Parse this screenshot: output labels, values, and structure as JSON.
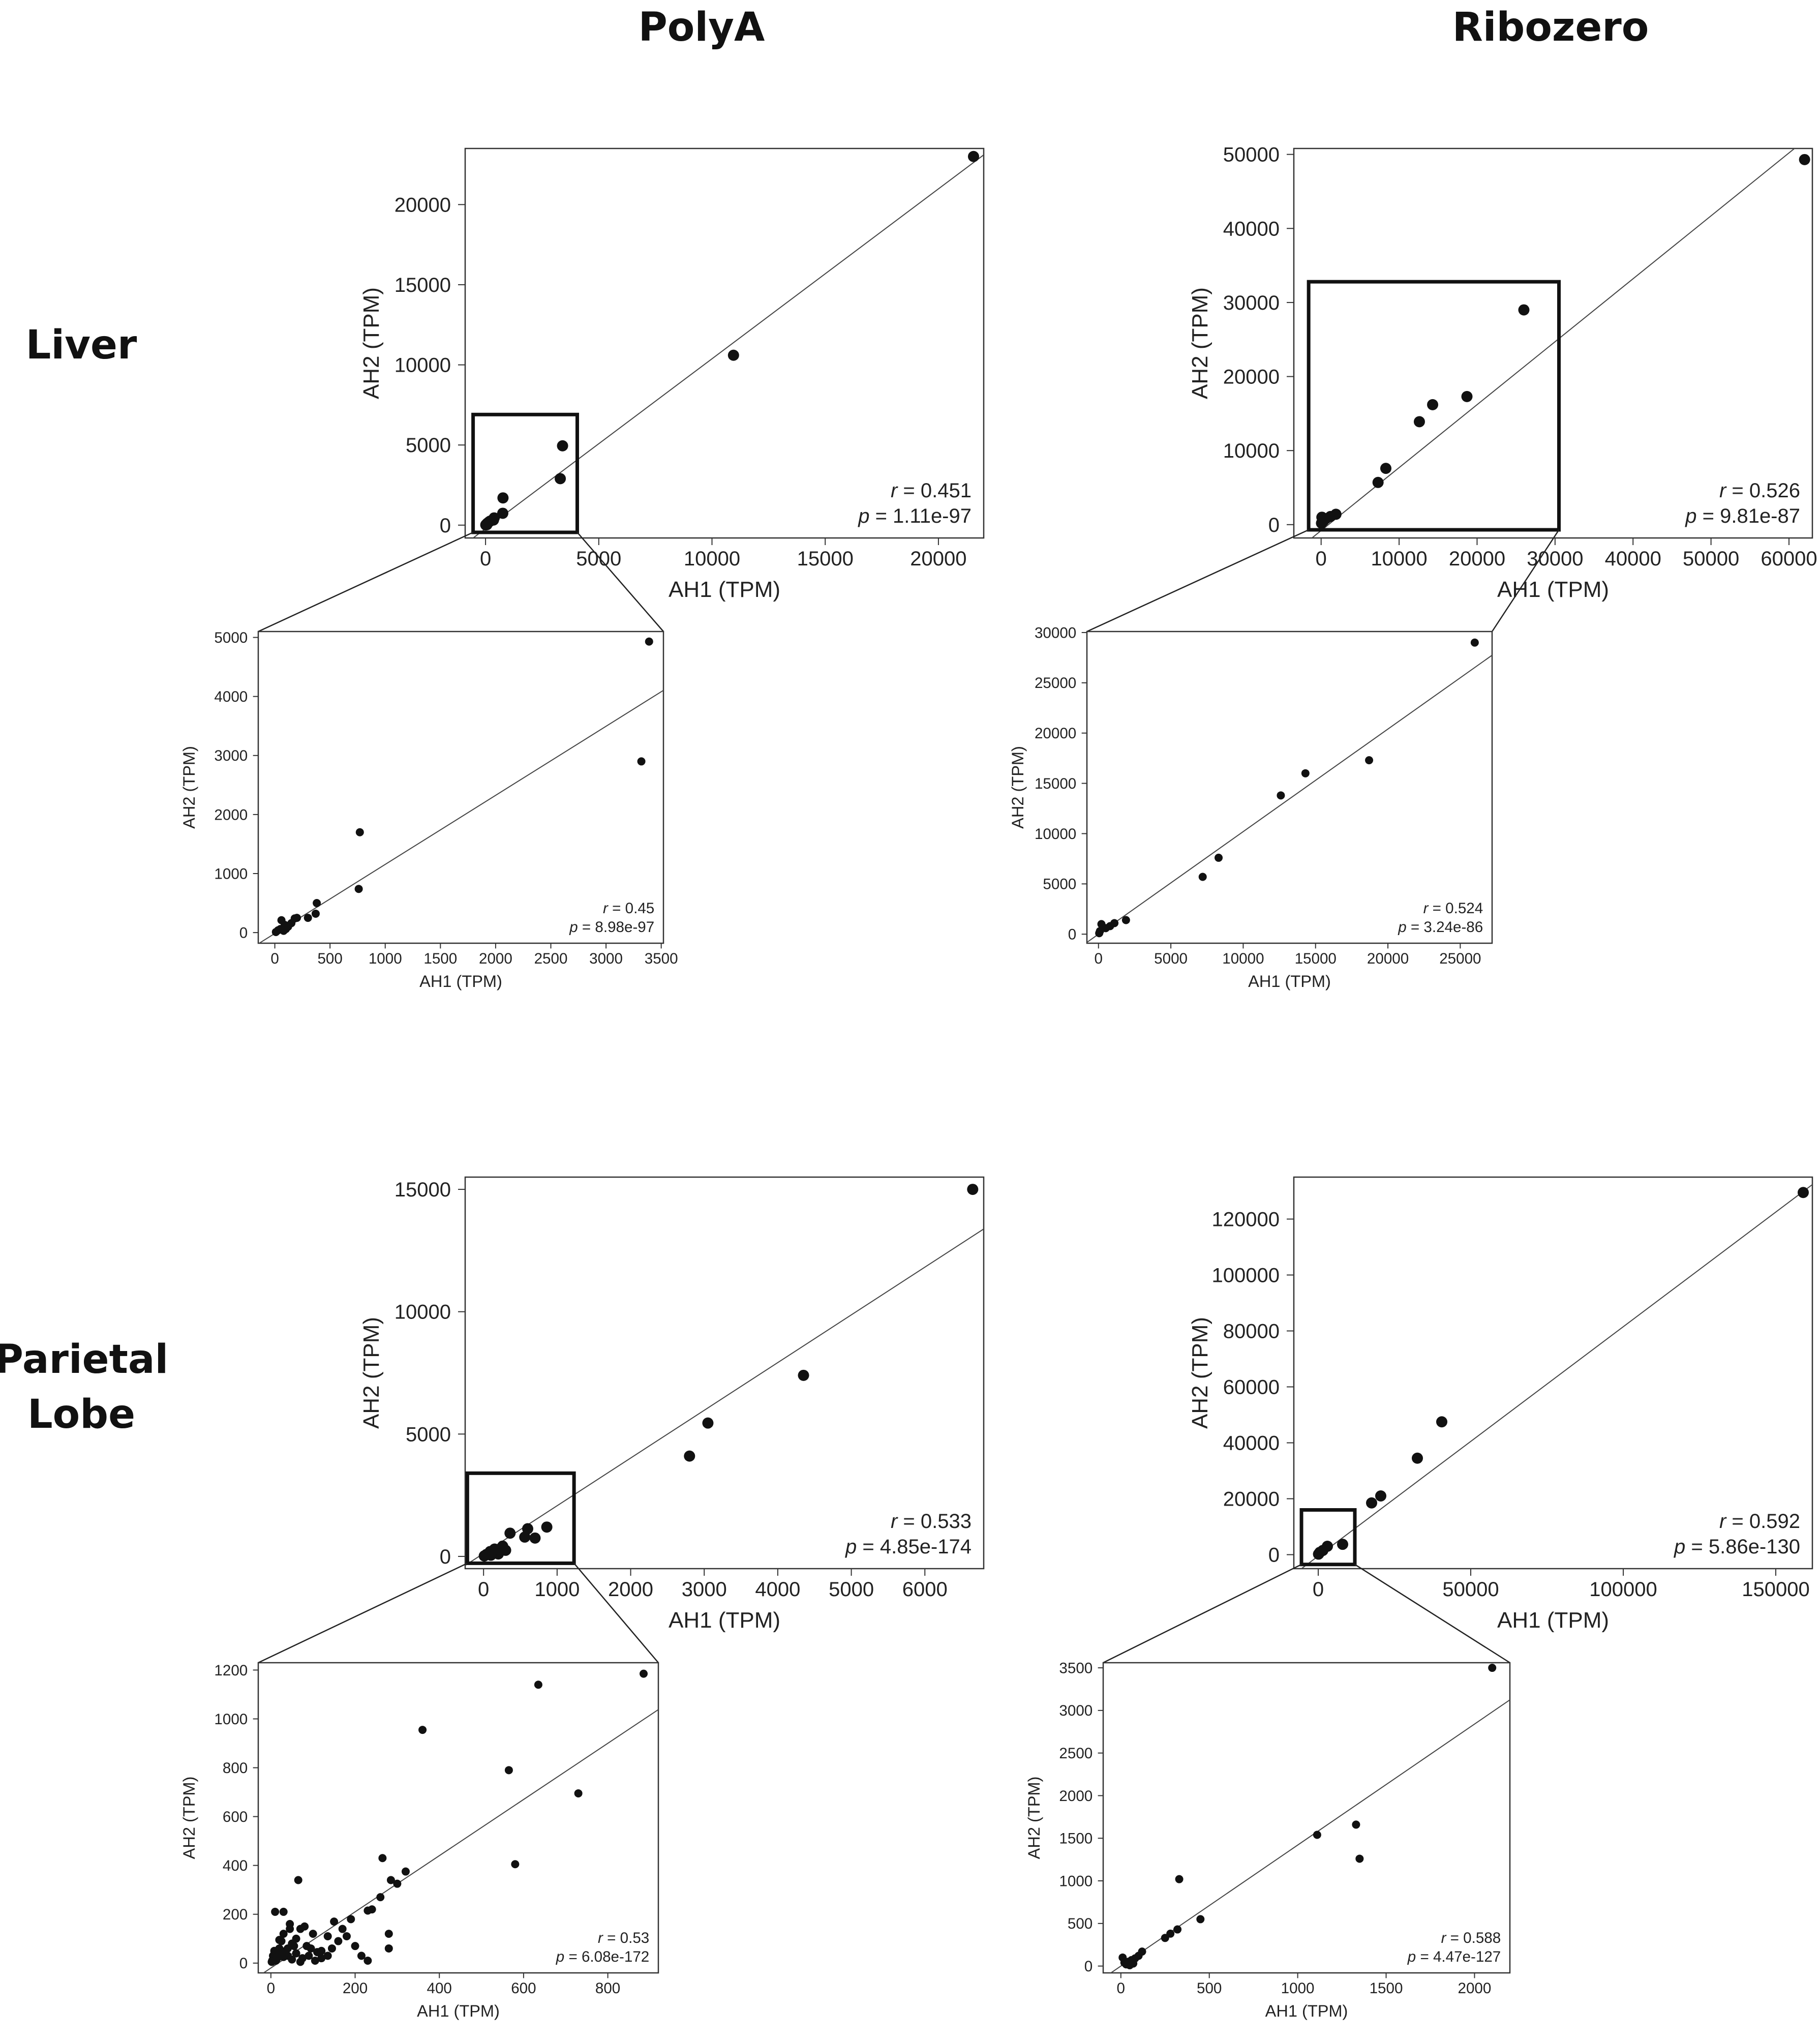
{
  "headers": {
    "columns": [
      "PolyA",
      "Ribozero"
    ],
    "rows": [
      [
        "Liver"
      ],
      [
        "Parietal",
        "Lobe"
      ]
    ]
  },
  "chart_data": [
    {
      "id": "liver-polya-main",
      "type": "scatter",
      "xlabel": "AH1 (TPM)",
      "ylabel": "AH2 (TPM)",
      "xlim": [
        -900,
        22000
      ],
      "ylim": [
        -800,
        23500
      ],
      "xticks": [
        0,
        5000,
        10000,
        15000,
        20000
      ],
      "yticks": [
        0,
        5000,
        10000,
        15000,
        20000
      ],
      "stats": {
        "r": "0.451",
        "p": "1.11e-97"
      },
      "fit_line": {
        "slope": 1.06,
        "intercept": -220
      },
      "zoom_box": {
        "x": [
          -550,
          4050
        ],
        "y": [
          -450,
          6900
        ]
      },
      "points": [
        [
          21550,
          23000
        ],
        [
          10950,
          10600
        ],
        [
          3400,
          4950
        ],
        [
          3300,
          2900
        ],
        [
          770,
          1700
        ],
        [
          760,
          740
        ],
        [
          380,
          450
        ],
        [
          350,
          320
        ],
        [
          200,
          250
        ],
        [
          150,
          200
        ],
        [
          80,
          120
        ],
        [
          40,
          60
        ],
        [
          10,
          15
        ],
        [
          60,
          30
        ]
      ]
    },
    {
      "id": "liver-polya-zoom",
      "type": "scatter",
      "xlabel": "AH1 (TPM)",
      "ylabel": "AH2 (TPM)",
      "xlim": [
        -150,
        3520
      ],
      "ylim": [
        -180,
        5100
      ],
      "xticks": [
        0,
        500,
        1000,
        1500,
        2000,
        2500,
        3000,
        3500
      ],
      "yticks": [
        0,
        1000,
        2000,
        3000,
        4000,
        5000
      ],
      "stats": {
        "r": "0.45",
        "p": "8.98e-97"
      },
      "fit_line": {
        "slope": 1.17,
        "intercept": -15
      },
      "points": [
        [
          3390,
          4930
        ],
        [
          3320,
          2900
        ],
        [
          770,
          1700
        ],
        [
          760,
          740
        ],
        [
          380,
          500
        ],
        [
          370,
          320
        ],
        [
          300,
          250
        ],
        [
          200,
          250
        ],
        [
          180,
          240
        ],
        [
          150,
          160
        ],
        [
          120,
          100
        ],
        [
          90,
          130
        ],
        [
          60,
          210
        ],
        [
          50,
          60
        ],
        [
          30,
          40
        ],
        [
          10,
          10
        ],
        [
          80,
          30
        ],
        [
          100,
          60
        ]
      ]
    },
    {
      "id": "liver-ribozero-main",
      "type": "scatter",
      "xlabel": "AH1 (TPM)",
      "ylabel": "AH2 (TPM)",
      "xlim": [
        -3500,
        63000
      ],
      "ylim": [
        -1800,
        50800
      ],
      "xticks": [
        0,
        10000,
        20000,
        30000,
        40000,
        50000,
        60000
      ],
      "yticks": [
        0,
        10000,
        20000,
        30000,
        40000,
        50000
      ],
      "stats": {
        "r": "0.526",
        "p": "9.81e-87"
      },
      "fit_line": {
        "slope": 0.85,
        "intercept": -800
      },
      "zoom_box": {
        "x": [
          -1600,
          30500
        ],
        "y": [
          -700,
          32800
        ]
      },
      "points": [
        [
          62000,
          49300
        ],
        [
          26000,
          29000
        ],
        [
          18700,
          17300
        ],
        [
          14300,
          16200
        ],
        [
          12600,
          13900
        ],
        [
          8300,
          7600
        ],
        [
          7300,
          5700
        ],
        [
          1900,
          1400
        ],
        [
          1200,
          1100
        ],
        [
          600,
          800
        ],
        [
          300,
          500
        ],
        [
          100,
          1000
        ],
        [
          50,
          200
        ]
      ]
    },
    {
      "id": "liver-ribozero-zoom",
      "type": "scatter",
      "xlabel": "AH1 (TPM)",
      "ylabel": "AH2 (TPM)",
      "xlim": [
        -800,
        27200
      ],
      "ylim": [
        -900,
        30100
      ],
      "xticks": [
        0,
        5000,
        10000,
        15000,
        20000,
        25000
      ],
      "yticks": [
        0,
        5000,
        10000,
        15000,
        20000,
        25000,
        30000
      ],
      "stats": {
        "r": "0.524",
        "p": "3.24e-86"
      },
      "fit_line": {
        "slope": 1.02,
        "intercept": 0
      },
      "points": [
        [
          26000,
          29000
        ],
        [
          18700,
          17300
        ],
        [
          14300,
          16000
        ],
        [
          12600,
          13800
        ],
        [
          8300,
          7600
        ],
        [
          7200,
          5700
        ],
        [
          1900,
          1400
        ],
        [
          1100,
          1100
        ],
        [
          800,
          800
        ],
        [
          500,
          600
        ],
        [
          200,
          1000
        ],
        [
          100,
          300
        ],
        [
          50,
          100
        ]
      ]
    },
    {
      "id": "parietal-polya-main",
      "type": "scatter",
      "xlabel": "AH1 (TPM)",
      "ylabel": "AH2 (TPM)",
      "xlim": [
        -250,
        6800
      ],
      "ylim": [
        -500,
        15500
      ],
      "xticks": [
        0,
        1000,
        2000,
        3000,
        4000,
        5000,
        6000
      ],
      "yticks": [
        0,
        5000,
        10000,
        15000
      ],
      "stats": {
        "r": "0.533",
        "p": "4.85e-174"
      },
      "fit_line": {
        "slope": 1.95,
        "intercept": 120
      },
      "zoom_box": {
        "x": [
          -220,
          1230
        ],
        "y": [
          -280,
          3400
        ]
      },
      "points": [
        [
          6650,
          15000
        ],
        [
          4350,
          7400
        ],
        [
          3050,
          5450
        ],
        [
          2800,
          4100
        ],
        [
          860,
          1200
        ],
        [
          700,
          750
        ],
        [
          600,
          1130
        ],
        [
          560,
          790
        ],
        [
          360,
          950
        ],
        [
          260,
          420
        ],
        [
          150,
          300
        ],
        [
          90,
          200
        ],
        [
          40,
          80
        ],
        [
          10,
          20
        ],
        [
          200,
          100
        ],
        [
          100,
          50
        ],
        [
          300,
          250
        ]
      ]
    },
    {
      "id": "parietal-polya-zoom",
      "type": "scatter",
      "xlabel": "AH1 (TPM)",
      "ylabel": "AH2 (TPM)",
      "xlim": [
        -30,
        920
      ],
      "ylim": [
        -40,
        1230
      ],
      "xticks": [
        0,
        200,
        400,
        600,
        800
      ],
      "yticks": [
        0,
        200,
        400,
        600,
        800,
        1000,
        1200
      ],
      "stats": {
        "r": "0.53",
        "p": "6.08e-172"
      },
      "fit_line": {
        "slope": 1.15,
        "intercept": -20
      },
      "points": [
        [
          885,
          1185
        ],
        [
          635,
          1140
        ],
        [
          360,
          955
        ],
        [
          565,
          790
        ],
        [
          730,
          695
        ],
        [
          580,
          405
        ],
        [
          320,
          375
        ],
        [
          300,
          325
        ],
        [
          285,
          340
        ],
        [
          265,
          430
        ],
        [
          260,
          270
        ],
        [
          240,
          220
        ],
        [
          230,
          215
        ],
        [
          280,
          120
        ],
        [
          280,
          60
        ],
        [
          230,
          10
        ],
        [
          215,
          30
        ],
        [
          190,
          180
        ],
        [
          170,
          140
        ],
        [
          150,
          170
        ],
        [
          135,
          110
        ],
        [
          120,
          20
        ],
        [
          110,
          45
        ],
        [
          100,
          120
        ],
        [
          95,
          60
        ],
        [
          85,
          70
        ],
        [
          80,
          150
        ],
        [
          70,
          140
        ],
        [
          65,
          340
        ],
        [
          60,
          100
        ],
        [
          55,
          70
        ],
        [
          50,
          80
        ],
        [
          45,
          140
        ],
        [
          40,
          60
        ],
        [
          35,
          50
        ],
        [
          30,
          210
        ],
        [
          30,
          120
        ],
        [
          25,
          90
        ],
        [
          20,
          60
        ],
        [
          18,
          40
        ],
        [
          15,
          20
        ],
        [
          12,
          10
        ],
        [
          10,
          210
        ],
        [
          8,
          50
        ],
        [
          5,
          30
        ],
        [
          3,
          10
        ],
        [
          2,
          5
        ],
        [
          40,
          30
        ],
        [
          60,
          40
        ],
        [
          75,
          20
        ],
        [
          90,
          30
        ],
        [
          105,
          10
        ],
        [
          120,
          50
        ],
        [
          135,
          30
        ],
        [
          145,
          60
        ],
        [
          160,
          90
        ],
        [
          180,
          110
        ],
        [
          200,
          70
        ],
        [
          70,
          5
        ],
        [
          50,
          15
        ],
        [
          30,
          25
        ],
        [
          20,
          95
        ],
        [
          45,
          160
        ]
      ]
    },
    {
      "id": "parietal-ribozero-main",
      "type": "scatter",
      "xlabel": "AH1 (TPM)",
      "ylabel": "AH2 (TPM)",
      "xlim": [
        -8000,
        162000
      ],
      "ylim": [
        -5000,
        135000
      ],
      "xticks": [
        0,
        50000,
        100000,
        150000
      ],
      "yticks": [
        0,
        20000,
        40000,
        60000,
        80000,
        100000,
        120000
      ],
      "stats": {
        "r": "0.592",
        "p": "5.86e-130"
      },
      "fit_line": {
        "slope": 0.82,
        "intercept": -500
      },
      "zoom_box": {
        "x": [
          -5500,
          12000
        ],
        "y": [
          -3500,
          16000
        ]
      },
      "points": [
        [
          159000,
          129500
        ],
        [
          40500,
          47500
        ],
        [
          32500,
          34500
        ],
        [
          20500,
          21000
        ],
        [
          17500,
          18500
        ],
        [
          8000,
          3700
        ],
        [
          3000,
          3000
        ],
        [
          1500,
          1500
        ],
        [
          500,
          800
        ],
        [
          100,
          200
        ]
      ]
    },
    {
      "id": "parietal-ribozero-zoom",
      "type": "scatter",
      "xlabel": "AH1 (TPM)",
      "ylabel": "AH2 (TPM)",
      "xlim": [
        -100,
        2200
      ],
      "ylim": [
        -80,
        3560
      ],
      "xticks": [
        0,
        500,
        1000,
        1500,
        2000
      ],
      "yticks": [
        0,
        500,
        1000,
        1500,
        2000,
        2500,
        3000,
        3500
      ],
      "stats": {
        "r": "0.588",
        "p": "4.47e-127"
      },
      "fit_line": {
        "slope": 1.42,
        "intercept": 0
      },
      "points": [
        [
          2100,
          3500
        ],
        [
          1330,
          1660
        ],
        [
          1350,
          1260
        ],
        [
          1110,
          1540
        ],
        [
          330,
          1020
        ],
        [
          450,
          550
        ],
        [
          320,
          430
        ],
        [
          280,
          380
        ],
        [
          250,
          330
        ],
        [
          120,
          170
        ],
        [
          100,
          120
        ],
        [
          80,
          90
        ],
        [
          60,
          70
        ],
        [
          40,
          50
        ],
        [
          20,
          40
        ],
        [
          10,
          100
        ],
        [
          30,
          20
        ],
        [
          50,
          10
        ],
        [
          70,
          30
        ]
      ]
    }
  ]
}
